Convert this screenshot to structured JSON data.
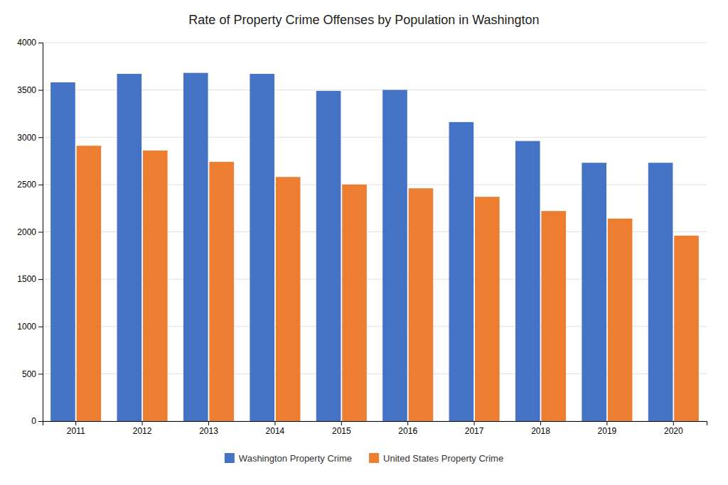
{
  "chart_data": {
    "type": "bar",
    "title": "Rate of Property Crime Offenses by Population in Washington",
    "categories": [
      "2011",
      "2012",
      "2013",
      "2014",
      "2015",
      "2016",
      "2017",
      "2018",
      "2019",
      "2020"
    ],
    "series": [
      {
        "name": "Washington Property Crime",
        "color": "#4472C4",
        "values": [
          3580,
          3670,
          3680,
          3670,
          3490,
          3500,
          3160,
          2960,
          2730,
          2730
        ]
      },
      {
        "name": "United States Property Crime",
        "color": "#ED7D31",
        "values": [
          2910,
          2860,
          2740,
          2580,
          2500,
          2460,
          2370,
          2220,
          2140,
          1960
        ]
      }
    ],
    "ylim": [
      0,
      4000
    ],
    "yticks": [
      0,
      500,
      1000,
      1500,
      2000,
      2500,
      3000,
      3500,
      4000
    ],
    "grid": true,
    "legend": "bottom"
  }
}
